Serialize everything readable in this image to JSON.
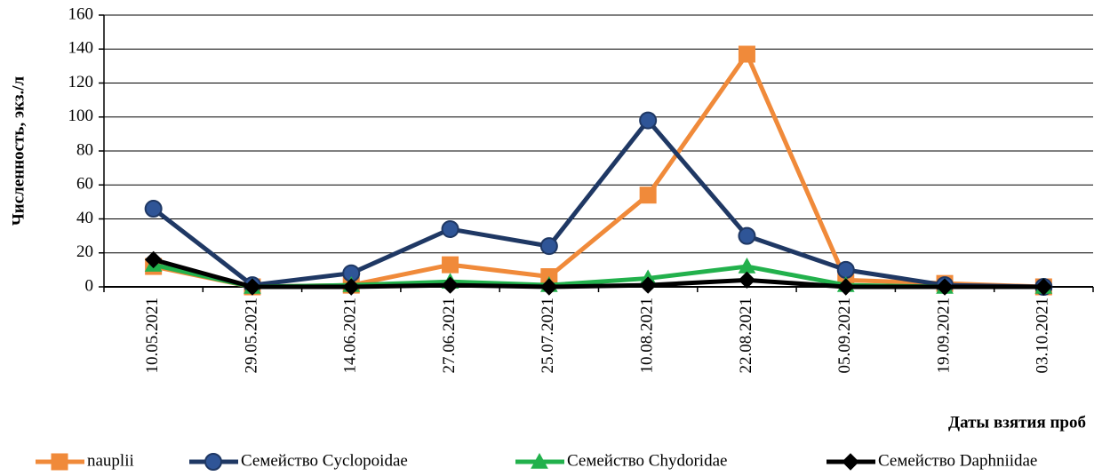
{
  "chart_data": {
    "type": "line",
    "ylabel": "Численность, экз./л",
    "xlabel": "Даты взятия проб",
    "categories": [
      "10.05.2021",
      "29.05.2021",
      "14.06.2021",
      "27.06.2021",
      "25.07.2021",
      "10.08.2021",
      "22.08.2021",
      "05.09.2021",
      "19.09.2021",
      "03.10.2021"
    ],
    "series": [
      {
        "name": "nauplii",
        "color": "#f08a3a",
        "marker": "square",
        "values": [
          12,
          0,
          1,
          13,
          6,
          54,
          137,
          4,
          2,
          0
        ]
      },
      {
        "name": "Семейство Cyclopoidae",
        "color": "#1f3864",
        "marker": "circle",
        "values": [
          46,
          1,
          8,
          34,
          24,
          98,
          30,
          10,
          1,
          0
        ]
      },
      {
        "name": "Семейство Chydoridae",
        "color": "#22b14c",
        "marker": "triangle",
        "values": [
          13,
          0,
          1,
          3,
          1,
          5,
          12,
          1,
          0,
          0
        ]
      },
      {
        "name": "Семейство Daphniidae",
        "color": "#000000",
        "marker": "diamond",
        "values": [
          16,
          0,
          0,
          1,
          0,
          1,
          4,
          0,
          0,
          0
        ]
      }
    ],
    "ylim": [
      0,
      160
    ],
    "yticks": [
      0,
      20,
      40,
      60,
      80,
      100,
      120,
      140,
      160
    ],
    "grid": true,
    "legend": "bottom"
  }
}
